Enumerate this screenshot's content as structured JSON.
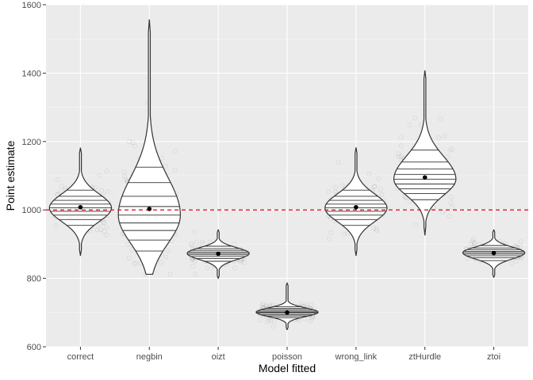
{
  "chart_data": {
    "type": "violin",
    "xlabel": "Model fitted",
    "ylabel": "Point estimate",
    "ylim": [
      600,
      1600
    ],
    "yticks": [
      600,
      800,
      1000,
      1200,
      1400,
      1600
    ],
    "reference_line": {
      "y": 1000,
      "color": "#e41a1c",
      "style": "dashed"
    },
    "grid": true,
    "background": "#ebebeb",
    "categories": [
      "correct",
      "negbin",
      "oizt",
      "poisson",
      "wrong_link",
      "ztHurdle",
      "ztoi"
    ],
    "series": [
      {
        "category": "correct",
        "mean": 1008,
        "min": 867,
        "max": 1182,
        "quantiles": [
          955,
          972,
          985,
          996,
          1006,
          1017,
          1028,
          1040,
          1058
        ]
      },
      {
        "category": "negbin",
        "mean": 1003,
        "min": 812,
        "max": 1557,
        "quantiles": [
          880,
          912,
          940,
          962,
          985,
          1010,
          1040,
          1080,
          1125
        ]
      },
      {
        "category": "oizt",
        "mean": 872,
        "min": 800,
        "max": 942,
        "quantiles": [
          850,
          858,
          864,
          869,
          873,
          877,
          882,
          887,
          894
        ]
      },
      {
        "category": "poisson",
        "mean": 700,
        "min": 650,
        "max": 786,
        "quantiles": [
          685,
          690,
          694,
          698,
          701,
          704,
          708,
          712,
          717
        ]
      },
      {
        "category": "wrong_link",
        "mean": 1008,
        "min": 867,
        "max": 1182,
        "quantiles": [
          955,
          972,
          985,
          996,
          1006,
          1017,
          1028,
          1040,
          1058
        ]
      },
      {
        "category": "ztHurdle",
        "mean": 1095,
        "min": 927,
        "max": 1408,
        "quantiles": [
          1030,
          1048,
          1062,
          1076,
          1090,
          1104,
          1120,
          1140,
          1175
        ]
      },
      {
        "category": "ztoi",
        "mean": 874,
        "min": 803,
        "max": 942,
        "quantiles": [
          852,
          860,
          866,
          871,
          875,
          879,
          884,
          889,
          896
        ]
      }
    ]
  }
}
